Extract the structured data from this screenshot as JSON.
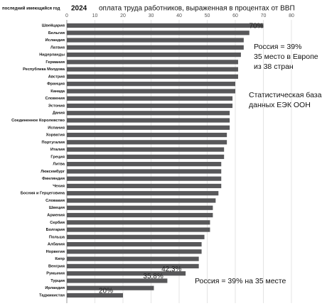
{
  "chart_data": {
    "type": "bar",
    "orientation": "horizontal",
    "year_note": "последний имеющийся год",
    "year": "2024",
    "title": "оплата труда работников, выраженная в процентах от ВВП",
    "categories": [
      "Швейцария",
      "Бельгия",
      "Исландия",
      "Латвия",
      "Нидерланды",
      "Германия",
      "Республика Молдова",
      "Австрия",
      "Франция",
      "Канада",
      "Словения",
      "Эстония",
      "Дания",
      "Соединенное Королевство",
      "Испания",
      "Хорватия",
      "Португалия",
      "Италия",
      "Греция",
      "Литва",
      "Люксембург",
      "Финляндия",
      "Чехия",
      "Босния и Герцеговина",
      "Словакия",
      "Швеция",
      "Армения",
      "Сербия",
      "Болгария",
      "Польша",
      "Албания",
      "Норвегия",
      "Кипр",
      "Венгрия",
      "Румыния",
      "Турция",
      "Ирландия",
      "Таджикистан"
    ],
    "values": [
      70,
      65,
      63,
      63,
      62,
      61,
      61,
      61,
      60,
      60,
      59,
      59,
      58,
      58,
      58,
      57,
      57,
      56,
      56,
      55,
      55,
      55,
      55,
      54,
      53,
      52,
      52,
      51,
      51,
      49,
      48,
      48,
      47,
      47,
      42.3,
      35.8,
      31,
      20
    ],
    "value_labels": [
      "70%",
      null,
      null,
      null,
      null,
      null,
      null,
      null,
      null,
      null,
      null,
      null,
      null,
      null,
      null,
      null,
      null,
      null,
      null,
      null,
      null,
      null,
      null,
      null,
      null,
      null,
      null,
      null,
      null,
      null,
      null,
      null,
      null,
      null,
      "42,3%",
      "35,8%",
      null,
      "20%"
    ],
    "color": "#58585a",
    "xlim": [
      0,
      90
    ],
    "xticks": [
      0,
      10,
      20,
      30,
      40,
      50,
      60,
      70,
      80
    ],
    "grid": true,
    "annotations": [
      "Россия = 39%",
      "35 место в Европе",
      "из 38 стран",
      "Статистическая база",
      "данных ЕЭК ООН",
      "Россия = 39% на 35 месте"
    ]
  }
}
